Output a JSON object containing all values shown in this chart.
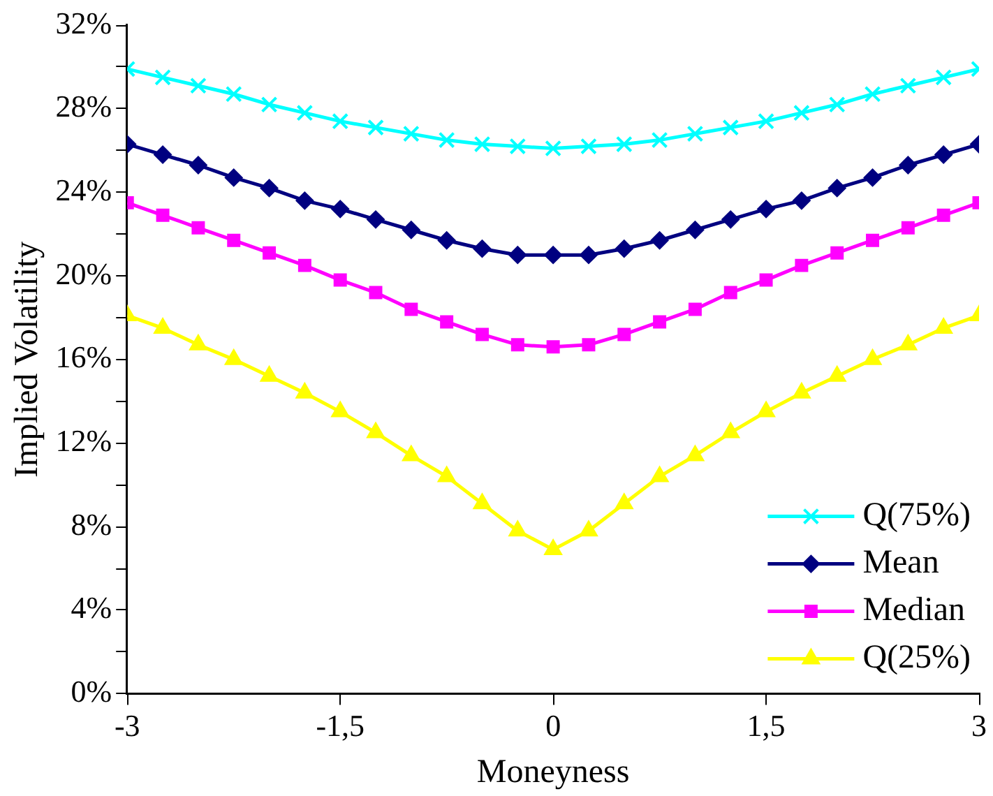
{
  "chart_data": {
    "type": "line",
    "xlabel": "Moneyness",
    "ylabel": "Implied Volatility",
    "x": [
      -3,
      -2.75,
      -2.5,
      -2.25,
      -2,
      -1.75,
      -1.5,
      -1.25,
      -1,
      -0.75,
      -0.5,
      -0.25,
      0,
      0.25,
      0.5,
      0.75,
      1,
      1.25,
      1.5,
      1.75,
      2,
      2.25,
      2.5,
      2.75,
      3
    ],
    "series": [
      {
        "name": "Q(75%)",
        "color": "#00ffff",
        "marker": "cross",
        "values": [
          29.9,
          29.5,
          29.1,
          28.7,
          28.2,
          27.8,
          27.4,
          27.1,
          26.8,
          26.5,
          26.3,
          26.2,
          26.1,
          26.2,
          26.3,
          26.5,
          26.8,
          27.1,
          27.4,
          27.8,
          28.2,
          28.7,
          29.1,
          29.5,
          29.9
        ]
      },
      {
        "name": "Mean",
        "color": "#000080",
        "marker": "diamond",
        "values": [
          26.3,
          25.8,
          25.3,
          24.7,
          24.2,
          23.6,
          23.2,
          22.7,
          22.2,
          21.7,
          21.3,
          21.0,
          21.0,
          21.0,
          21.3,
          21.7,
          22.2,
          22.7,
          23.2,
          23.6,
          24.2,
          24.7,
          25.3,
          25.8,
          26.3
        ]
      },
      {
        "name": "Median",
        "color": "#ff00ff",
        "marker": "square",
        "values": [
          23.5,
          22.9,
          22.3,
          21.7,
          21.1,
          20.5,
          19.8,
          19.2,
          18.4,
          17.8,
          17.2,
          16.7,
          16.6,
          16.7,
          17.2,
          17.8,
          18.4,
          19.2,
          19.8,
          20.5,
          21.1,
          21.7,
          22.3,
          22.9,
          23.5
        ]
      },
      {
        "name": "Q(25%)",
        "color": "#ffff00",
        "marker": "triangle",
        "values": [
          18.1,
          17.5,
          16.7,
          16.0,
          15.2,
          14.4,
          13.5,
          12.5,
          11.4,
          10.4,
          9.1,
          7.8,
          6.9,
          7.8,
          9.1,
          10.4,
          11.4,
          12.5,
          13.5,
          14.4,
          15.2,
          16.0,
          16.7,
          17.5,
          18.1
        ]
      }
    ],
    "xlim": [
      -3,
      3
    ],
    "xticks": [
      {
        "value": -3,
        "label": "-3"
      },
      {
        "value": -1.5,
        "label": "-1,5"
      },
      {
        "value": 0,
        "label": "0"
      },
      {
        "value": 1.5,
        "label": "1,5"
      },
      {
        "value": 3,
        "label": "3"
      }
    ],
    "ylim": [
      0,
      32
    ],
    "yticks": [
      {
        "value": 0,
        "label": "0%"
      },
      {
        "value": 2,
        "label": null
      },
      {
        "value": 4,
        "label": "4%"
      },
      {
        "value": 6,
        "label": null
      },
      {
        "value": 8,
        "label": "8%"
      },
      {
        "value": 10,
        "label": null
      },
      {
        "value": 12,
        "label": "12%"
      },
      {
        "value": 14,
        "label": null
      },
      {
        "value": 16,
        "label": "16%"
      },
      {
        "value": 18,
        "label": null
      },
      {
        "value": 20,
        "label": "20%"
      },
      {
        "value": 22,
        "label": null
      },
      {
        "value": 24,
        "label": "24%"
      },
      {
        "value": 26,
        "label": null
      },
      {
        "value": 28,
        "label": "28%"
      },
      {
        "value": 30,
        "label": null
      },
      {
        "value": 32,
        "label": "32%"
      }
    ],
    "grid": false,
    "legend": "bottom right",
    "line_style": "solid"
  }
}
